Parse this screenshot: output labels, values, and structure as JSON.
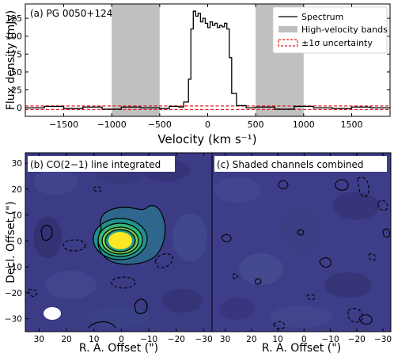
{
  "chart_data": [
    {
      "type": "line",
      "panel_label": "(a) PG 0050+124",
      "xlabel": "Velocity (km s⁻¹)",
      "ylabel": "Flux density (mJy)",
      "xlim": [
        -1900,
        1900
      ],
      "ylim": [
        -12,
        145
      ],
      "xticks": [
        -1500,
        -1000,
        -500,
        0,
        500,
        1000,
        1500
      ],
      "yticks": [
        0,
        25,
        50,
        75,
        100,
        125
      ],
      "shaded_bands": [
        [
          -1000,
          -500
        ],
        [
          500,
          1000
        ]
      ],
      "uncertainty": 2.5,
      "series": [
        {
          "name": "Spectrum",
          "x": [
            -1900,
            -1700,
            -1500,
            -1300,
            -1100,
            -900,
            -700,
            -500,
            -400,
            -300,
            -250,
            -200,
            -175,
            -150,
            -125,
            -100,
            -75,
            -50,
            -25,
            0,
            25,
            50,
            75,
            100,
            125,
            150,
            175,
            200,
            225,
            250,
            300,
            400,
            500,
            700,
            900,
            1100,
            1300,
            1500,
            1700,
            1900
          ],
          "y": [
            0,
            2,
            -1,
            1,
            -2,
            1,
            0,
            -1,
            2,
            1,
            8,
            40,
            110,
            135,
            128,
            132,
            120,
            125,
            118,
            112,
            120,
            115,
            118,
            112,
            115,
            113,
            118,
            110,
            70,
            20,
            3,
            0,
            1,
            -2,
            2,
            0,
            -1,
            1,
            0,
            1
          ]
        }
      ],
      "legend": {
        "position": "top-right",
        "entries": [
          "Spectrum",
          "High-velocity bands",
          "±1σ uncertainty"
        ]
      }
    },
    {
      "type": "heatmap",
      "panel_label": "(b) CO(2−1) line integrated",
      "xlabel": "R. A. Offset (\")",
      "ylabel": "Decl. Offset (\")",
      "xlim": [
        35,
        -33
      ],
      "ylim": [
        -35,
        34
      ],
      "xticks": [
        30,
        20,
        10,
        0,
        -10,
        -20,
        -30
      ],
      "yticks": [
        30,
        20,
        10,
        0,
        -10,
        -20,
        -30
      ],
      "source_center": [
        0,
        0
      ]
    },
    {
      "type": "heatmap",
      "panel_label": "(c) Shaded channels combined",
      "xlabel": "R. A. Offset (\")",
      "xlim": [
        35,
        -33
      ],
      "ylim": [
        -35,
        34
      ],
      "xticks": [
        30,
        20,
        10,
        0,
        -10,
        -20,
        -30
      ]
    }
  ],
  "colors": {
    "spectrum_line": "#000000",
    "band_fill": "#c0c0c0",
    "uncertainty_line": "#e31a1c",
    "map_background": "#3b3b86",
    "map_peak": "#fde725",
    "beam": "#ffffff"
  }
}
